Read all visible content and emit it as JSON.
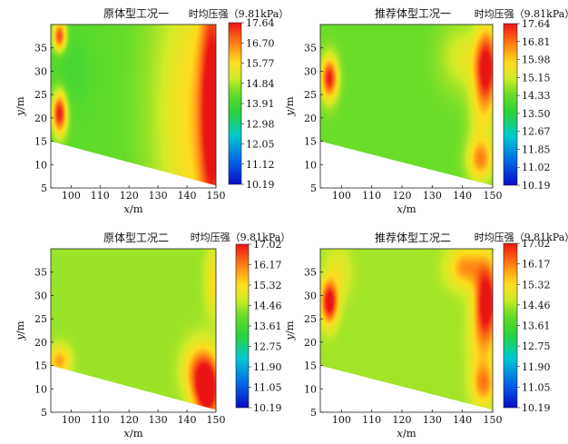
{
  "chart_data": [
    {
      "type": "heatmap",
      "title": "原体型工况一",
      "colorbar_title": "时均压强（9.81kPa）",
      "xlabel_var": "x",
      "xlabel_unit": "/m",
      "ylabel_var": "y",
      "ylabel_unit": "/m",
      "xlim": [
        93,
        150
      ],
      "ylim": [
        5,
        40
      ],
      "xticks": [
        "100",
        "110",
        "120",
        "130",
        "140",
        "150"
      ],
      "yticks": [
        "5",
        "10",
        "15",
        "20",
        "25",
        "30",
        "35"
      ],
      "colorbar_range": [
        10.19,
        17.64
      ],
      "colorbar_ticks": [
        "17.64",
        "16.70",
        "15.77",
        "14.84",
        "13.91",
        "12.98",
        "12.05",
        "11.12",
        "10.19"
      ],
      "base_value": 14.3,
      "boundary_line": [
        [
          93,
          15
        ],
        [
          150,
          5.5
        ]
      ],
      "features": [
        {
          "x": 96,
          "y": 21,
          "sx": 1.8,
          "sy": 3.2,
          "v": 3.4
        },
        {
          "x": 96,
          "y": 37.5,
          "sx": 1.6,
          "sy": 2.2,
          "v": 3.0
        },
        {
          "x": 100,
          "y": 30,
          "sx": 5,
          "sy": 6,
          "v": -0.4
        },
        {
          "x": 149,
          "y": 22,
          "sx": 3.2,
          "sy": 20,
          "v": 3.3
        },
        {
          "x": 143,
          "y": 20,
          "sx": 7,
          "sy": 22,
          "v": 1.3
        },
        {
          "x": 133,
          "y": 22,
          "sx": 8,
          "sy": 25,
          "v": 0.5
        }
      ]
    },
    {
      "type": "heatmap",
      "title": "推荐体型工况一",
      "colorbar_title": "时均压强（9.81kPa）",
      "xlabel_var": "x",
      "xlabel_unit": "/m",
      "ylabel_var": "y",
      "ylabel_unit": "/m",
      "xlim": [
        93,
        150
      ],
      "ylim": [
        5,
        40
      ],
      "xticks": [
        "100",
        "110",
        "120",
        "130",
        "140",
        "150"
      ],
      "yticks": [
        "5",
        "10",
        "15",
        "20",
        "25",
        "30",
        "35"
      ],
      "colorbar_range": [
        10.19,
        17.64
      ],
      "colorbar_ticks": [
        "17.64",
        "16.81",
        "15.98",
        "15.15",
        "14.33",
        "13.50",
        "12.67",
        "11.85",
        "11.02",
        "10.19"
      ],
      "base_value": 14.4,
      "boundary_line": [
        [
          93,
          15
        ],
        [
          150,
          5.5
        ]
      ],
      "features": [
        {
          "x": 96,
          "y": 28.5,
          "sx": 1.9,
          "sy": 3.2,
          "v": 3.2
        },
        {
          "x": 148,
          "y": 31,
          "sx": 2.6,
          "sy": 6,
          "v": 3.2
        },
        {
          "x": 146,
          "y": 11,
          "sx": 3,
          "sy": 3,
          "v": 1.8
        },
        {
          "x": 140,
          "y": 33,
          "sx": 5,
          "sy": 5,
          "v": 0.9
        },
        {
          "x": 146,
          "y": 20,
          "sx": 3,
          "sy": 8,
          "v": 0.9
        }
      ]
    },
    {
      "type": "heatmap",
      "title": "原体型工况二",
      "colorbar_title": "时均压强（9.81kPa）",
      "xlabel_var": "x",
      "xlabel_unit": "/m",
      "ylabel_var": "y",
      "ylabel_unit": "/m",
      "xlim": [
        93,
        150
      ],
      "ylim": [
        5,
        40
      ],
      "xticks": [
        "100",
        "110",
        "120",
        "130",
        "140",
        "150"
      ],
      "yticks": [
        "5",
        "10",
        "15",
        "20",
        "25",
        "30",
        "35"
      ],
      "colorbar_range": [
        10.19,
        17.02
      ],
      "colorbar_ticks": [
        "17.02",
        "16.17",
        "15.32",
        "14.46",
        "13.61",
        "12.75",
        "11.90",
        "11.05",
        "10.19"
      ],
      "base_value": 14.35,
      "boundary_line": [
        [
          93,
          15
        ],
        [
          150,
          5.5
        ]
      ],
      "features": [
        {
          "x": 147,
          "y": 10,
          "sx": 3.2,
          "sy": 5,
          "v": 3.3
        },
        {
          "x": 143,
          "y": 14,
          "sx": 3.5,
          "sy": 4,
          "v": 1.2
        },
        {
          "x": 96,
          "y": 16,
          "sx": 2.6,
          "sy": 2.2,
          "v": 1.5
        },
        {
          "x": 149,
          "y": 33,
          "sx": 2,
          "sy": 5,
          "v": 0.9
        }
      ]
    },
    {
      "type": "heatmap",
      "title": "推荐体型工况二",
      "colorbar_title": "时均压强（9.81kPa）",
      "xlabel_var": "x",
      "xlabel_unit": "/m",
      "ylabel_var": "y",
      "ylabel_unit": "/m",
      "xlim": [
        93,
        150
      ],
      "ylim": [
        5,
        40
      ],
      "xticks": [
        "100",
        "110",
        "120",
        "130",
        "140",
        "150"
      ],
      "yticks": [
        "5",
        "10",
        "15",
        "20",
        "25",
        "30",
        "35"
      ],
      "colorbar_range": [
        10.19,
        17.02
      ],
      "colorbar_ticks": [
        "17.02",
        "16.17",
        "15.32",
        "14.46",
        "13.61",
        "12.75",
        "11.90",
        "11.05",
        "10.19"
      ],
      "base_value": 14.4,
      "boundary_line": [
        [
          93,
          15
        ],
        [
          150,
          5.5
        ]
      ],
      "features": [
        {
          "x": 96,
          "y": 28.5,
          "sx": 1.9,
          "sy": 3.2,
          "v": 2.9
        },
        {
          "x": 148,
          "y": 29,
          "sx": 2.6,
          "sy": 6,
          "v": 2.8
        },
        {
          "x": 141,
          "y": 36,
          "sx": 4,
          "sy": 3,
          "v": 1.6
        },
        {
          "x": 147,
          "y": 11,
          "sx": 2.6,
          "sy": 3,
          "v": 1.5
        },
        {
          "x": 146,
          "y": 20,
          "sx": 3,
          "sy": 7,
          "v": 0.8
        },
        {
          "x": 99,
          "y": 35,
          "sx": 3,
          "sy": 4,
          "v": 0.6
        }
      ]
    }
  ]
}
